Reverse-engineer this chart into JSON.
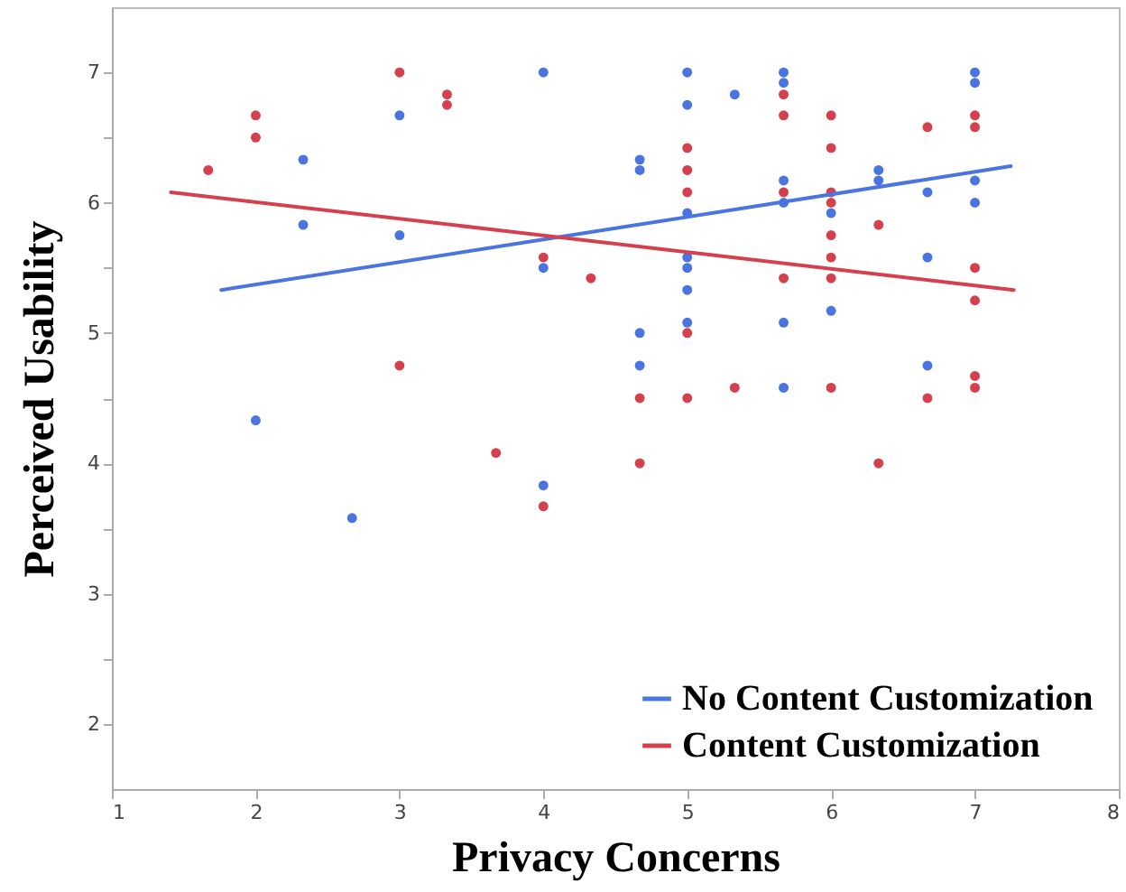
{
  "chart_data": {
    "type": "scatter",
    "xlabel": "Privacy Concerns",
    "ylabel": "Perceived Usability",
    "xlim": [
      1,
      8
    ],
    "xticks": [
      1,
      2,
      3,
      4,
      5,
      6,
      7,
      8
    ],
    "ylim": [
      1.5,
      7.5
    ],
    "yticks": [
      2,
      {
        "value": 2.5,
        "label": null
      },
      3,
      {
        "value": 3.5,
        "label": null
      },
      4,
      {
        "value": 4.5,
        "label": null
      },
      5,
      {
        "value": 5.5,
        "label": null
      },
      6,
      {
        "value": 6.5,
        "label": null
      },
      7
    ],
    "grid": false,
    "legend": "bottom right",
    "series": [
      {
        "marker": "circle",
        "color": "#4a74e0",
        "x": [
          2,
          2.33,
          2.33,
          2.67,
          3,
          3,
          4,
          4,
          4,
          4.67,
          4.67,
          4.67,
          4.67,
          5,
          5,
          5,
          5,
          5,
          5,
          5,
          5.33,
          5.67,
          5.67,
          5.67,
          5.67,
          5.67,
          5.67,
          6,
          6,
          6.33,
          6.33,
          6.67,
          6.67,
          6.67,
          7,
          7,
          7,
          7
        ],
        "values": [
          4.33,
          6.33,
          5.83,
          3.58,
          6.67,
          5.75,
          7,
          5.5,
          3.83,
          6.33,
          6.25,
          5,
          4.75,
          7,
          6.75,
          5.92,
          5.58,
          5.5,
          5.33,
          5.08,
          6.83,
          7,
          6.92,
          6.17,
          6,
          5.08,
          4.58,
          5.92,
          5.17,
          6.25,
          6.17,
          6.08,
          5.58,
          4.75,
          7,
          6.92,
          6.17,
          6
        ]
      },
      {
        "marker": "circle",
        "color": "#d5404e",
        "x": [
          1.67,
          2,
          2,
          3,
          3,
          3.33,
          3.33,
          3.67,
          4,
          4,
          4.33,
          4.67,
          4.67,
          5,
          5,
          5,
          5,
          5,
          5.33,
          5.67,
          5.67,
          5.67,
          5.67,
          6,
          6,
          6,
          6,
          6,
          6,
          6,
          6,
          6.33,
          6.33,
          6.67,
          6.67,
          7,
          7,
          7,
          7,
          7,
          7
        ],
        "values": [
          6.25,
          6.67,
          6.5,
          7,
          4.75,
          6.83,
          6.75,
          4.08,
          5.58,
          3.67,
          5.42,
          4.5,
          4,
          6.42,
          6.25,
          6.08,
          5,
          4.5,
          4.58,
          6.83,
          6.67,
          6.08,
          5.42,
          6.67,
          6.42,
          6.08,
          6,
          5.75,
          5.58,
          5.42,
          4.58,
          5.83,
          4,
          6.58,
          4.5,
          6.67,
          6.58,
          5.5,
          5.25,
          4.67,
          4.58
        ]
      },
      {
        "type": "line",
        "name": "No Content Customization",
        "color": "#4a74e0",
        "x": [
          1.76,
          7.25
        ],
        "values": [
          5.33,
          6.28
        ]
      },
      {
        "type": "line",
        "name": "Content Customization",
        "color": "#d5404e",
        "x": [
          1.41,
          7.27
        ],
        "values": [
          6.08,
          5.33
        ]
      }
    ]
  }
}
